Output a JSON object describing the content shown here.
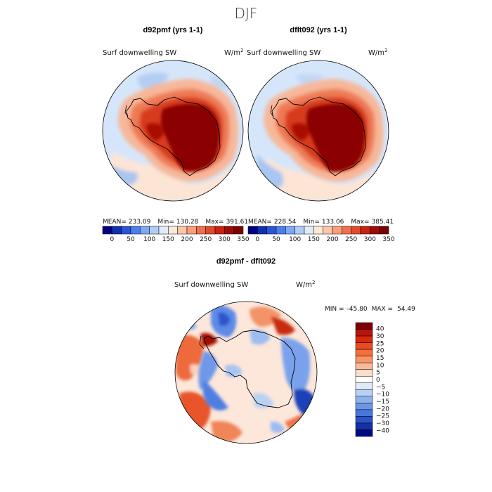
{
  "title": "DJF",
  "panels": [
    {
      "id": "left",
      "title": "d92pmf (yrs 1-1)",
      "variable": "Surf downwelling SW",
      "units_base": "W/m",
      "units_exp": "2",
      "stats": {
        "mean_label": "MEAN=",
        "mean": "233.09",
        "min_label": "Min=",
        "min": "130.28",
        "max_label": "Max=",
        "max": "391.61"
      }
    },
    {
      "id": "right",
      "title": "dflt092 (yrs 1-1)",
      "variable": "Surf downwelling SW",
      "units_base": "W/m",
      "units_exp": "2",
      "stats": {
        "mean_label": "MEAN=",
        "mean": "228.54",
        "min_label": "Min=",
        "min": "133.06",
        "max_label": "Max=",
        "max": "385.41"
      }
    }
  ],
  "top_colorbar": {
    "colors": [
      "#00007f",
      "#1030b0",
      "#2a55d8",
      "#4a7ef0",
      "#7fa8f5",
      "#b0ccf5",
      "#e0ecfa",
      "#fde8d8",
      "#fbc7a8",
      "#f7a07a",
      "#f07050",
      "#e24a2c",
      "#c82214",
      "#a00a04",
      "#7a0000"
    ],
    "tick_labels": [
      "0",
      "50",
      "100",
      "150",
      "200",
      "250",
      "300",
      "350"
    ]
  },
  "diff": {
    "title": "d92pmf - dflt092",
    "variable": "Surf downwelling SW",
    "units_base": "W/m",
    "units_exp": "2",
    "min_label": "MIN =",
    "min": "-45.80",
    "max_label": "MAX =",
    "max": "54.49",
    "colorbar": {
      "colors": [
        "#7f0000",
        "#b81408",
        "#d8280e",
        "#ea4a1e",
        "#f36e3e",
        "#f79468",
        "#f9b99a",
        "#fcdcca",
        "#ffffff",
        "#dfeaf8",
        "#b8d0f2",
        "#8eb2ec",
        "#6a96e6",
        "#4a76dc",
        "#2c52c8",
        "#1232a8",
        "#000a80"
      ],
      "tick_labels": [
        "40",
        "30",
        "25",
        "20",
        "15",
        "10",
        "5",
        "0",
        "−5",
        "−10",
        "−15",
        "−20",
        "−25",
        "−30",
        "−40"
      ]
    }
  }
}
